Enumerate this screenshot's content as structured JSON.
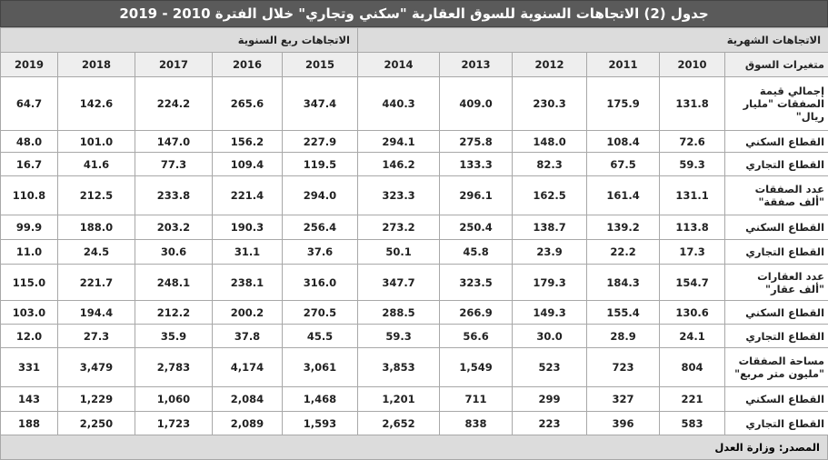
{
  "title": "جدول (2) الاتجاهات السنوية للسوق العقارية \"سكني وتجاري\" خلال الفترة 2010 - 2019",
  "table": {
    "group_headers": [
      "الاتجاهات الشهرية",
      "الاتجاهات ربع السنوية"
    ],
    "header": [
      "متغيرات السوق",
      "2010",
      "2011",
      "2012",
      "2013",
      "2014",
      "2015",
      "2016",
      "2017",
      "2018",
      "2019"
    ],
    "rows": [
      [
        "إجمالي قيمة الصفقات \"مليار ريال\"",
        "131.8",
        "175.9",
        "230.3",
        "409.0",
        "440.3",
        "347.4",
        "265.6",
        "224.2",
        "142.6",
        "64.7"
      ],
      [
        "القطاع السكني",
        "72.6",
        "108.4",
        "148.0",
        "275.8",
        "294.1",
        "227.9",
        "156.2",
        "147.0",
        "101.0",
        "48.0"
      ],
      [
        "القطاع التجاري",
        "59.3",
        "67.5",
        "82.3",
        "133.3",
        "146.2",
        "119.5",
        "109.4",
        "77.3",
        "41.6",
        "16.7"
      ],
      [
        "عدد الصفقات \"ألف صفقة\"",
        "131.1",
        "161.4",
        "162.5",
        "296.1",
        "323.3",
        "294.0",
        "221.4",
        "233.8",
        "212.5",
        "110.8"
      ],
      [
        "القطاع السكني",
        "113.8",
        "139.2",
        "138.7",
        "250.4",
        "273.2",
        "256.4",
        "190.3",
        "203.2",
        "188.0",
        "99.9"
      ],
      [
        "القطاع التجاري",
        "17.3",
        "22.2",
        "23.9",
        "45.8",
        "50.1",
        "37.6",
        "31.1",
        "30.6",
        "24.5",
        "11.0"
      ],
      [
        "عدد العقارات \"ألف عقار\"",
        "154.7",
        "184.3",
        "179.3",
        "323.5",
        "347.7",
        "316.0",
        "238.1",
        "248.1",
        "221.7",
        "115.0"
      ],
      [
        "القطاع السكني",
        "130.6",
        "155.4",
        "149.3",
        "266.9",
        "288.5",
        "270.5",
        "200.2",
        "212.2",
        "194.4",
        "103.0"
      ],
      [
        "القطاع التجاري",
        "24.1",
        "28.9",
        "30.0",
        "56.6",
        "59.3",
        "45.5",
        "37.8",
        "35.9",
        "27.3",
        "12.0"
      ],
      [
        "مساحة الصفقات \"مليون متر مربع\"",
        "804",
        "723",
        "523",
        "1,549",
        "3,853",
        "3,061",
        "4,174",
        "2,783",
        "3,479",
        "331"
      ],
      [
        "القطاع السكني",
        "221",
        "327",
        "299",
        "711",
        "1,201",
        "1,468",
        "2,084",
        "1,060",
        "1,229",
        "143"
      ],
      [
        "القطاع التجاري",
        "583",
        "396",
        "223",
        "838",
        "2,652",
        "1,593",
        "2,089",
        "1,723",
        "2,250",
        "188"
      ]
    ]
  },
  "source": "المصدر: وزارة العدل"
}
